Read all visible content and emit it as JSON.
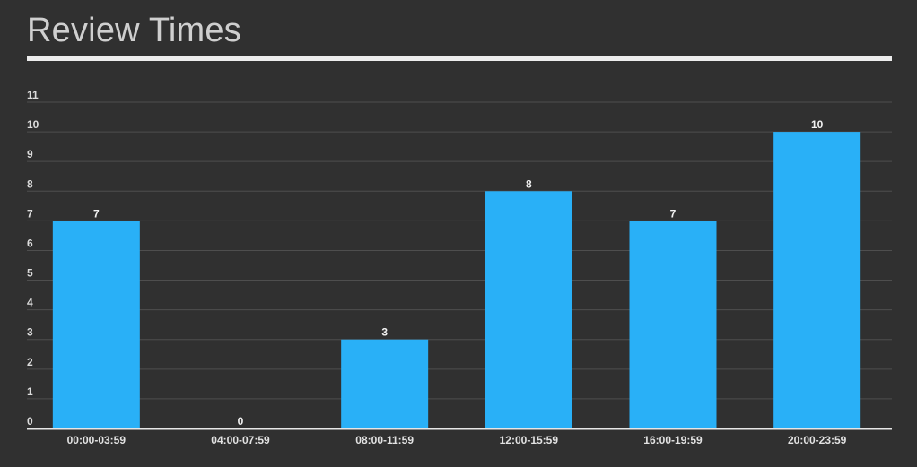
{
  "chart_data": {
    "type": "bar",
    "title": "Review Times",
    "xlabel": "",
    "ylabel": "",
    "categories": [
      "00:00-03:59",
      "04:00-07:59",
      "08:00-11:59",
      "12:00-15:59",
      "16:00-19:59",
      "20:00-23:59"
    ],
    "values": [
      7,
      0,
      3,
      8,
      7,
      10
    ],
    "ylim": [
      0,
      11
    ],
    "yticks": [
      "0",
      "1",
      "2",
      "3",
      "4",
      "5",
      "6",
      "7",
      "8",
      "9",
      "10",
      "11"
    ],
    "data_labels": [
      "7",
      "0",
      "3",
      "8",
      "7",
      "10"
    ],
    "grid": true,
    "legend": "none"
  },
  "colors": {
    "background": "#303030",
    "bar": "#29b0f7",
    "gridline": "#4e4e4e",
    "baseline": "#e6e6e6",
    "title": "#cfcfcf",
    "title_rule": "#ececec"
  }
}
